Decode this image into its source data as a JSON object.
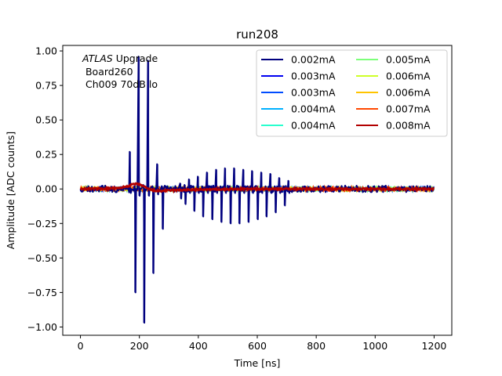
{
  "chart_data": {
    "type": "line",
    "title": "run208",
    "xlabel": "Time [ns]",
    "ylabel": "Amplitude [ADC counts]",
    "xlim": [
      -60,
      1260
    ],
    "ylim": [
      -1.06,
      1.04
    ],
    "xticks": [
      0,
      200,
      400,
      600,
      800,
      1000,
      1200
    ],
    "yticks": [
      -1.0,
      -0.75,
      -0.5,
      -0.25,
      0.0,
      0.25,
      0.5,
      0.75,
      1.0
    ],
    "xtick_labels": [
      "0",
      "200",
      "400",
      "600",
      "800",
      "1000",
      "1200"
    ],
    "ytick_labels": [
      "−1.00",
      "−0.75",
      "−0.50",
      "−0.25",
      "0.00",
      "0.25",
      "0.50",
      "0.75",
      "1.00"
    ],
    "grid": false,
    "legend_position": "top-right",
    "legend_columns": 2,
    "annotation": {
      "line1_italic": "ATLAS",
      "line1_rest": " Upgrade",
      "line2": " Board260",
      "line3": " Ch009 70dB lo"
    },
    "series": [
      {
        "name": "0.002mA",
        "color": "#00007f",
        "role": "spikes"
      },
      {
        "name": "0.003mA",
        "color": "#0000f1",
        "role": "noise"
      },
      {
        "name": "0.003mA",
        "color": "#004cff",
        "role": "noise"
      },
      {
        "name": "0.004mA",
        "color": "#00b0ff",
        "role": "noise"
      },
      {
        "name": "0.004mA",
        "color": "#29ffce",
        "role": "noise"
      },
      {
        "name": "0.005mA",
        "color": "#7dff7a",
        "role": "noise"
      },
      {
        "name": "0.006mA",
        "color": "#ceff29",
        "role": "noise"
      },
      {
        "name": "0.006mA",
        "color": "#ffc400",
        "role": "noise"
      },
      {
        "name": "0.007mA",
        "color": "#ff4800",
        "role": "noise"
      },
      {
        "name": "0.008mA",
        "color": "#b20000",
        "role": "pulse"
      }
    ],
    "spikes": [
      {
        "x": 169,
        "pos": 0.27,
        "neg": -0.03
      },
      {
        "x": 185,
        "pos": 0.02,
        "neg": -0.75
      },
      {
        "x": 199,
        "pos": 0.96,
        "neg": -0.05
      },
      {
        "x": 215,
        "pos": 0.03,
        "neg": -0.97
      },
      {
        "x": 231,
        "pos": 0.93,
        "neg": -0.05
      },
      {
        "x": 246,
        "pos": 0.02,
        "neg": -0.61
      },
      {
        "x": 262,
        "pos": 0.18,
        "neg": -0.04
      },
      {
        "x": 278,
        "pos": 0.02,
        "neg": -0.29
      },
      {
        "x": 340,
        "pos": 0.04,
        "neg": -0.07
      },
      {
        "x": 355,
        "pos": 0.03,
        "neg": -0.11
      },
      {
        "x": 370,
        "pos": 0.07,
        "neg": -0.03
      },
      {
        "x": 385,
        "pos": 0.02,
        "neg": -0.16
      },
      {
        "x": 400,
        "pos": 0.09,
        "neg": -0.03
      },
      {
        "x": 415,
        "pos": 0.02,
        "neg": -0.2
      },
      {
        "x": 431,
        "pos": 0.12,
        "neg": -0.03
      },
      {
        "x": 446,
        "pos": 0.02,
        "neg": -0.22
      },
      {
        "x": 462,
        "pos": 0.14,
        "neg": -0.03
      },
      {
        "x": 477,
        "pos": 0.02,
        "neg": -0.24
      },
      {
        "x": 492,
        "pos": 0.15,
        "neg": -0.03
      },
      {
        "x": 508,
        "pos": 0.02,
        "neg": -0.25
      },
      {
        "x": 523,
        "pos": 0.15,
        "neg": -0.03
      },
      {
        "x": 538,
        "pos": 0.02,
        "neg": -0.25
      },
      {
        "x": 554,
        "pos": 0.14,
        "neg": -0.03
      },
      {
        "x": 569,
        "pos": 0.02,
        "neg": -0.24
      },
      {
        "x": 584,
        "pos": 0.13,
        "neg": -0.03
      },
      {
        "x": 600,
        "pos": 0.02,
        "neg": -0.22
      },
      {
        "x": 615,
        "pos": 0.12,
        "neg": -0.03
      },
      {
        "x": 630,
        "pos": 0.02,
        "neg": -0.2
      },
      {
        "x": 646,
        "pos": 0.11,
        "neg": -0.03
      },
      {
        "x": 661,
        "pos": 0.02,
        "neg": -0.17
      },
      {
        "x": 676,
        "pos": 0.08,
        "neg": -0.03
      },
      {
        "x": 692,
        "pos": 0.02,
        "neg": -0.12
      },
      {
        "x": 707,
        "pos": 0.06,
        "neg": -0.03
      }
    ],
    "pulse": {
      "x": [
        0,
        130,
        160,
        180,
        195,
        210,
        225,
        245,
        270,
        310,
        400,
        600,
        800,
        1000,
        1200
      ],
      "y": [
        0.0,
        0.005,
        0.02,
        0.035,
        0.035,
        0.025,
        0.005,
        -0.01,
        -0.015,
        -0.01,
        -0.005,
        0.0,
        0.0,
        0.0,
        0.0
      ]
    }
  }
}
